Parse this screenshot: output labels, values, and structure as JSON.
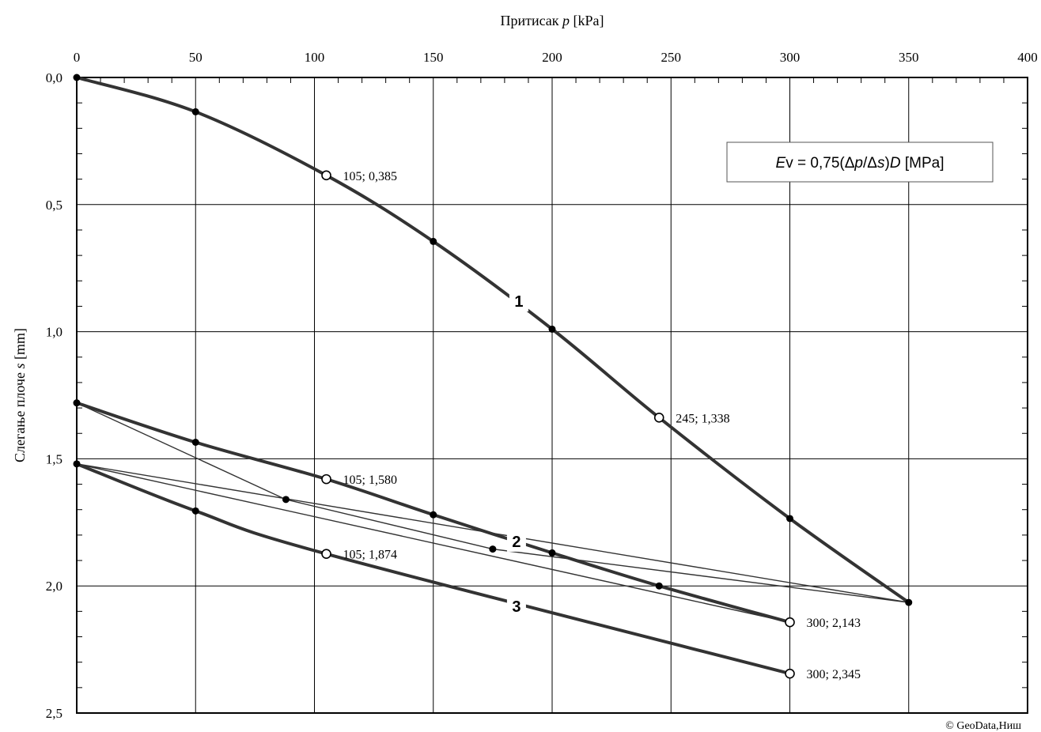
{
  "chart_data": {
    "type": "line",
    "title": "",
    "xlabel": "Притисак  p [kPa]",
    "ylabel": "Слегање плоче  s [mm]",
    "xlim": [
      0,
      400
    ],
    "ylim": [
      0,
      2.5
    ],
    "y_inverted": true,
    "x_axis_position": "top",
    "x_ticks": [
      0,
      50,
      100,
      150,
      200,
      250,
      300,
      350,
      400
    ],
    "x_tick_labels": [
      "0",
      "50",
      "100",
      "150",
      "200",
      "250",
      "300",
      "350",
      "400"
    ],
    "y_ticks": [
      0,
      0.5,
      1.0,
      1.5,
      2.0,
      2.5
    ],
    "y_tick_labels": [
      "0,0",
      "0,5",
      "1,0",
      "1,5",
      "2,0",
      "2,5"
    ],
    "grid": true,
    "formula_box": {
      "text": "Ev = 0,75(Δp/Δs)D  [MPa]",
      "placement": "top-right"
    },
    "credit": "© GeoData,Ниш",
    "series": [
      {
        "label": "1",
        "points": [
          [
            0,
            0.0
          ],
          [
            50,
            0.135
          ],
          [
            105,
            0.385
          ],
          [
            150,
            0.645
          ],
          [
            200,
            0.99
          ],
          [
            245,
            1.338
          ],
          [
            300,
            1.735
          ],
          [
            350,
            2.065
          ]
        ],
        "open_points": [
          [
            105,
            0.385
          ],
          [
            245,
            1.338
          ]
        ],
        "label_position": [
          186,
          0.88
        ]
      },
      {
        "label": "2",
        "points": [
          [
            0,
            1.28
          ],
          [
            50,
            1.435
          ],
          [
            105,
            1.58
          ],
          [
            150,
            1.72
          ],
          [
            200,
            1.87
          ],
          [
            245,
            2.0
          ],
          [
            300,
            2.143
          ]
        ],
        "open_points": [
          [
            105,
            1.58
          ],
          [
            300,
            2.143
          ]
        ],
        "label_position": [
          185,
          1.825
        ]
      },
      {
        "label": "3",
        "points": [
          [
            0,
            1.52
          ],
          [
            50,
            1.705
          ],
          [
            105,
            1.874
          ],
          [
            300,
            2.345
          ]
        ],
        "open_points": [
          [
            105,
            1.874
          ],
          [
            300,
            2.345
          ]
        ],
        "label_position": [
          185,
          2.08
        ]
      },
      {
        "label": "",
        "thin": true,
        "points": [
          [
            0,
            1.28
          ],
          [
            88,
            1.66
          ],
          [
            175,
            1.855
          ],
          [
            350,
            2.065
          ],
          [
            0,
            1.52
          ],
          [
            300,
            2.143
          ]
        ],
        "filled_points": [
          [
            88,
            1.66
          ],
          [
            175,
            1.855
          ]
        ]
      }
    ],
    "point_labels": [
      {
        "text": "105; 0,385",
        "at": [
          105,
          0.385
        ]
      },
      {
        "text": "245; 1,338",
        "at": [
          245,
          1.338
        ]
      },
      {
        "text": "105; 1,580",
        "at": [
          105,
          1.58
        ]
      },
      {
        "text": "105; 1,874",
        "at": [
          105,
          1.874
        ]
      },
      {
        "text": "300; 2,143",
        "at": [
          300,
          2.143
        ]
      },
      {
        "text": "300; 2,345",
        "at": [
          300,
          2.345
        ]
      }
    ]
  }
}
